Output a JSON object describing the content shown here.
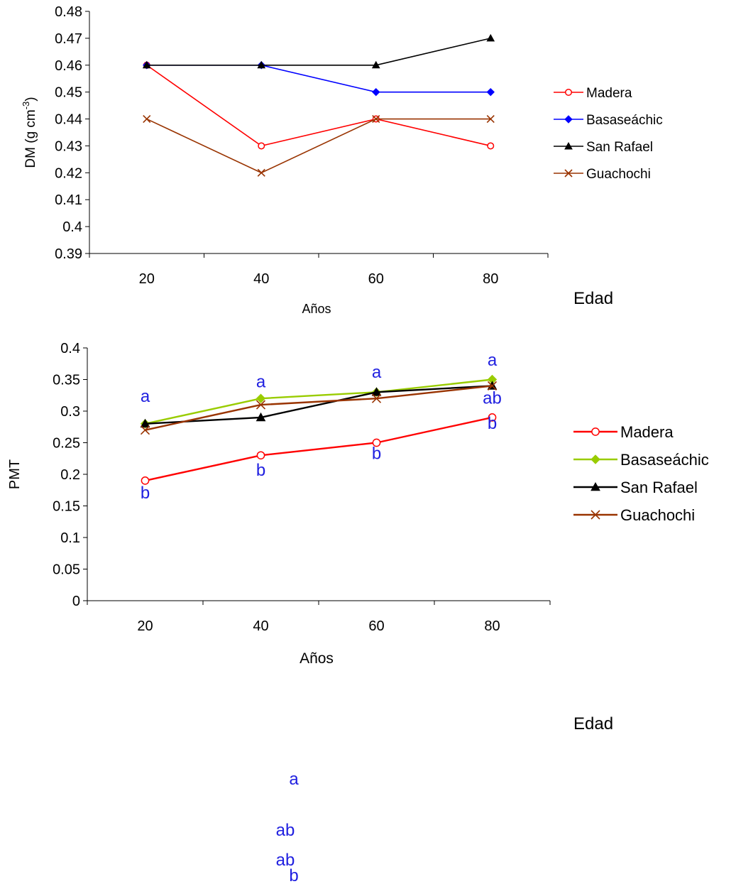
{
  "chart_data": [
    {
      "type": "line",
      "title": "",
      "xlabel": "Años",
      "ylabel": "DM (g cm",
      "ylabel_superscript": "-3",
      "ylabel_close": ")",
      "categories": [
        "20",
        "40",
        "60",
        "80"
      ],
      "ylim": [
        0.39,
        0.48
      ],
      "yticks": [
        0.39,
        0.4,
        0.41,
        0.42,
        0.43,
        0.44,
        0.45,
        0.46,
        0.47,
        0.48
      ],
      "ytick_labels": [
        "0.39",
        "0.4",
        "0.41",
        "0.42",
        "0.43",
        "0.44",
        "0.45",
        "0.46",
        "0.47",
        "0.48"
      ],
      "grid": false,
      "legend_position": "right",
      "side_label": "Edad",
      "series": [
        {
          "name": "Madera",
          "values": [
            0.46,
            0.43,
            0.44,
            0.43
          ],
          "color": "#ff0000",
          "marker": "open-circle"
        },
        {
          "name": "Basaseáchic",
          "values": [
            0.46,
            0.46,
            0.45,
            0.45
          ],
          "color": "#0000ff",
          "marker": "diamond"
        },
        {
          "name": "San Rafael",
          "values": [
            0.46,
            0.46,
            0.46,
            0.47
          ],
          "color": "#000000",
          "marker": "triangle"
        },
        {
          "name": "Guachochi",
          "values": [
            0.44,
            0.42,
            0.44,
            0.44
          ],
          "color": "#993300",
          "marker": "x"
        }
      ]
    },
    {
      "type": "line",
      "title": "",
      "xlabel": "Años",
      "ylabel": "PMT",
      "categories": [
        "20",
        "40",
        "60",
        "80"
      ],
      "ylim": [
        0,
        0.4
      ],
      "yticks": [
        0,
        0.05,
        0.1,
        0.15,
        0.2,
        0.25,
        0.3,
        0.35,
        0.4
      ],
      "ytick_labels": [
        "0",
        "0.05",
        "0.1",
        "0.15",
        "0.2",
        "0.25",
        "0.3",
        "0.35",
        "0.4"
      ],
      "grid": false,
      "legend_position": "right",
      "side_label": "Edad",
      "series": [
        {
          "name": "Madera",
          "values": [
            0.19,
            0.23,
            0.25,
            0.29
          ],
          "color": "#ff0000",
          "marker": "open-circle"
        },
        {
          "name": "Basaseáchic",
          "values": [
            0.28,
            0.32,
            0.33,
            0.35
          ],
          "color": "#99cc00",
          "marker": "diamond"
        },
        {
          "name": "San Rafael",
          "values": [
            0.28,
            0.29,
            0.33,
            0.34
          ],
          "color": "#000000",
          "marker": "triangle"
        },
        {
          "name": "Guachochi",
          "values": [
            0.27,
            0.31,
            0.32,
            0.34
          ],
          "color": "#993300",
          "marker": "x"
        }
      ],
      "annotations": [
        {
          "text": "a",
          "category": "20",
          "y": 0.325
        },
        {
          "text": "b",
          "category": "20",
          "y": 0.172
        },
        {
          "text": "a",
          "category": "40",
          "y": 0.348
        },
        {
          "text": "b",
          "category": "40",
          "y": 0.208
        },
        {
          "text": "a",
          "category": "60",
          "y": 0.363
        },
        {
          "text": "b",
          "category": "60",
          "y": 0.234
        },
        {
          "text": "a",
          "category": "80",
          "y": 0.382
        },
        {
          "text": "ab",
          "category": "80",
          "y": 0.322
        },
        {
          "text": "b",
          "category": "80",
          "y": 0.282
        }
      ]
    }
  ],
  "stray_letters": [
    "a",
    "ab",
    "ab",
    "b"
  ]
}
